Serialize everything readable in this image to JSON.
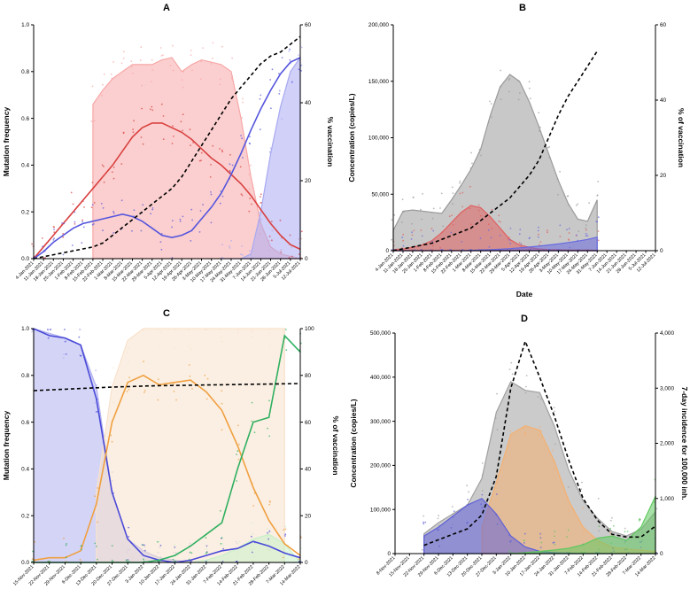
{
  "figure": {
    "panels": [
      "A",
      "B",
      "C",
      "D"
    ]
  },
  "chart_data": [
    {
      "panel": "A",
      "type": "line",
      "title": "A",
      "ylabel": "Mutation frequency",
      "y2label": "% vaccination",
      "ylim": [
        0,
        1.0
      ],
      "y2lim": [
        0,
        60
      ],
      "yticks": [
        "0.0",
        "0.2",
        "0.4",
        "0.6",
        "0.8",
        "1.0"
      ],
      "y2ticks": [
        "0",
        "20",
        "40",
        "60"
      ],
      "categories": [
        "4-Jan-2021",
        "11-Jan-2021",
        "18-Jan-2021",
        "25-Jan-2021",
        "1-Feb-2021",
        "8-Feb-2021",
        "15-Feb-2021",
        "22-Feb-2021",
        "1-Mar-2021",
        "8-Mar-2021",
        "15-Mar-2021",
        "22-Mar-2021",
        "29-Mar-2021",
        "5-Apr-2021",
        "12-Apr-2021",
        "19-Apr-2021",
        "26-Apr-2021",
        "3-May-2021",
        "10-May-2021",
        "17-May-2021",
        "24-May-2021",
        "31-May-2021",
        "7-Jun-2021",
        "14-Jun-2021",
        "21-Jun-2021",
        "28-Jun-2021",
        "5-Jul-2021",
        "12-Jul-2021"
      ],
      "series": [
        {
          "name": "Area red",
          "kind": "area",
          "axis": "y",
          "color": "#f7a7a7",
          "values": [
            null,
            null,
            null,
            null,
            null,
            null,
            0.66,
            0.72,
            0.77,
            0.8,
            0.83,
            0.83,
            0.83,
            0.85,
            0.86,
            0.8,
            0.83,
            0.85,
            0.84,
            0.83,
            0.8,
            0.6,
            0.35,
            0.15,
            0.05,
            0.02,
            0.01,
            0.0
          ]
        },
        {
          "name": "Area blue",
          "kind": "area",
          "axis": "y",
          "color": "#a9a9f2",
          "values": [
            null,
            null,
            null,
            null,
            null,
            null,
            null,
            null,
            null,
            null,
            null,
            null,
            null,
            null,
            null,
            null,
            null,
            null,
            null,
            0.0,
            0.0,
            0.0,
            0.02,
            0.2,
            0.45,
            0.65,
            0.8,
            0.86
          ]
        },
        {
          "name": "Red frequency",
          "kind": "line",
          "axis": "y",
          "color": "#d94040",
          "values": [
            0.0,
            0.05,
            0.1,
            0.15,
            0.2,
            0.25,
            0.3,
            0.35,
            0.4,
            0.46,
            0.52,
            0.56,
            0.58,
            0.58,
            0.56,
            0.54,
            0.51,
            0.47,
            0.43,
            0.4,
            0.36,
            0.32,
            0.27,
            0.21,
            0.15,
            0.1,
            0.06,
            0.04
          ]
        },
        {
          "name": "Blue frequency",
          "kind": "line",
          "axis": "y",
          "color": "#5555dd",
          "values": [
            0.0,
            0.03,
            0.07,
            0.1,
            0.13,
            0.15,
            0.16,
            0.17,
            0.18,
            0.19,
            0.18,
            0.16,
            0.13,
            0.1,
            0.09,
            0.1,
            0.12,
            0.17,
            0.22,
            0.28,
            0.36,
            0.45,
            0.55,
            0.64,
            0.72,
            0.79,
            0.84,
            0.86
          ]
        },
        {
          "name": "% vaccination",
          "kind": "dashed",
          "axis": "y2",
          "color": "#000000",
          "values": [
            0,
            0.5,
            1,
            1.5,
            2,
            2.5,
            3,
            4,
            6,
            8,
            10,
            12,
            14,
            16,
            18,
            21,
            25,
            29,
            33,
            37,
            41,
            44,
            47,
            50,
            52,
            53,
            55,
            57
          ]
        }
      ]
    },
    {
      "panel": "B",
      "type": "line",
      "title": "B",
      "xlabel": "Date",
      "ylabel": "Concentration (copies/L)",
      "y2label": "% of vaccination",
      "ylim": [
        0,
        200000
      ],
      "y2lim": [
        0,
        60
      ],
      "yticks": [
        "0",
        "50,000",
        "100,000",
        "150,000",
        "200,000"
      ],
      "y2ticks": [
        "0",
        "20",
        "40",
        "60"
      ],
      "categories": [
        "4-Jan-2021",
        "11-Jan-2021",
        "18-Jan-2021",
        "25-Jan-2021",
        "1-Feb-2021",
        "8-Feb-2021",
        "15-Feb-2021",
        "22-Feb-2021",
        "1-Mar-2021",
        "8-Mar-2021",
        "15-Mar-2021",
        "22-Mar-2021",
        "29-Mar-2021",
        "5-Apr-2021",
        "12-Apr-2021",
        "19-Apr-2021",
        "26-Apr-2021",
        "3-May-2021",
        "10-May-2021",
        "17-May-2021",
        "24-May-2021",
        "31-May-2021",
        "7-Jun-2021",
        "14-Jun-2021",
        "21-Jun-2021",
        "28-Jun-2021",
        "5-Jul-2021",
        "12-Jul-2021"
      ],
      "series": [
        {
          "name": "Total",
          "kind": "area",
          "axis": "y",
          "color": "#9a9a9a",
          "values": [
            18000,
            35000,
            36000,
            35000,
            34000,
            33000,
            45000,
            58000,
            72000,
            90000,
            120000,
            145000,
            156000,
            150000,
            132000,
            110000,
            86000,
            62000,
            42000,
            28000,
            26000,
            45000,
            null,
            null,
            null,
            null,
            null,
            null
          ]
        },
        {
          "name": "Variant red",
          "kind": "area",
          "axis": "y",
          "color": "#e06060",
          "values": [
            1000,
            1500,
            3000,
            5000,
            9000,
            16000,
            25000,
            34000,
            40000,
            38000,
            30000,
            20000,
            10000,
            5000,
            3000,
            1500,
            1000,
            800,
            600,
            500,
            400,
            300,
            null,
            null,
            null,
            null,
            null,
            null
          ]
        },
        {
          "name": "Variant blue",
          "kind": "area",
          "axis": "y",
          "color": "#6a6ae0",
          "values": [
            0,
            0,
            0,
            0,
            0,
            0,
            0,
            0,
            300,
            600,
            900,
            1300,
            1800,
            2500,
            3200,
            4000,
            5000,
            6000,
            7200,
            8500,
            10000,
            12000,
            null,
            null,
            null,
            null,
            null,
            null
          ]
        },
        {
          "name": "% vaccination",
          "kind": "dashed",
          "axis": "y2",
          "color": "#000000",
          "values": [
            0,
            0.5,
            1,
            1.5,
            2,
            3,
            4,
            5,
            6,
            8,
            10,
            12,
            14,
            17,
            20,
            24,
            30,
            36,
            41,
            45,
            49,
            53,
            null,
            null,
            null,
            null,
            null,
            null
          ]
        }
      ]
    },
    {
      "panel": "C",
      "type": "line",
      "title": "C",
      "ylabel": "Mutation frequency",
      "y2label": "% of vaccination",
      "ylim": [
        0,
        1.0
      ],
      "y2lim": [
        0,
        100
      ],
      "yticks": [
        "0.0",
        "0.2",
        "0.4",
        "0.6",
        "0.8",
        "1.0"
      ],
      "y2ticks": [
        "0",
        "20",
        "40",
        "60",
        "80",
        "100"
      ],
      "categories": [
        "15-Nov-2021",
        "22-Nov-2021",
        "29-Nov-2021",
        "6-Dec-2021",
        "13-Dec-2021",
        "20-Dec-2021",
        "27-Dec-2021",
        "3-Jan-2022",
        "10-Jan-2022",
        "17-Jan-2022",
        "24-Jan-2022",
        "31-Jan-2022",
        "7-Feb-2022",
        "14-Feb-2022",
        "21-Feb-2022",
        "28-Feb-2022",
        "7-Mar-2022",
        "14-Mar-2022"
      ],
      "series": [
        {
          "name": "Area blue",
          "kind": "area",
          "axis": "y",
          "color": "#b0b0f0",
          "values": [
            1.0,
            0.98,
            0.96,
            0.93,
            0.75,
            0.3,
            0.1,
            0.05,
            0.02,
            0.01,
            0.0,
            0.0,
            0.0,
            0.0,
            0.0,
            0.0,
            0.0,
            0.0
          ]
        },
        {
          "name": "Area orange",
          "kind": "area",
          "axis": "y",
          "color": "#f8e2cc",
          "values": [
            null,
            null,
            null,
            null,
            0.3,
            0.75,
            0.95,
            1.0,
            1.0,
            1.0,
            1.0,
            1.0,
            1.0,
            1.0,
            1.0,
            1.0,
            1.0,
            null
          ]
        },
        {
          "name": "Area green",
          "kind": "area",
          "axis": "y",
          "color": "#c9f0c9",
          "values": [
            null,
            null,
            null,
            null,
            null,
            null,
            0.0,
            0.0,
            0.0,
            0.0,
            0.0,
            0.01,
            0.03,
            0.06,
            0.1,
            0.12,
            0.08,
            0.0
          ]
        },
        {
          "name": "Blue frequency",
          "kind": "line",
          "axis": "y",
          "color": "#4a4ad8",
          "values": [
            1.0,
            0.97,
            0.96,
            0.93,
            0.7,
            0.3,
            0.1,
            0.03,
            0.01,
            0.0,
            0.01,
            0.03,
            0.05,
            0.06,
            0.09,
            0.07,
            0.04,
            0.02
          ]
        },
        {
          "name": "Orange frequency",
          "kind": "line",
          "axis": "y",
          "color": "#f0a040",
          "values": [
            0.01,
            0.02,
            0.02,
            0.05,
            0.25,
            0.6,
            0.77,
            0.8,
            0.76,
            0.77,
            0.78,
            0.73,
            0.65,
            0.5,
            0.32,
            0.18,
            0.08,
            0.03
          ]
        },
        {
          "name": "Green frequency",
          "kind": "line",
          "axis": "y",
          "color": "#30b060",
          "values": [
            0.0,
            0.0,
            0.0,
            0.0,
            0.0,
            0.0,
            0.0,
            0.0,
            0.01,
            0.03,
            0.07,
            0.12,
            0.17,
            0.4,
            0.6,
            0.62,
            0.97,
            0.9
          ]
        },
        {
          "name": "% vaccination",
          "kind": "dashed",
          "axis": "y2",
          "color": "#000000",
          "values": [
            73.5,
            73.8,
            74.1,
            74.4,
            74.7,
            75.0,
            75.2,
            75.4,
            75.6,
            75.7,
            75.8,
            75.9,
            76.0,
            76.1,
            76.2,
            76.3,
            76.4,
            76.5
          ]
        }
      ]
    },
    {
      "panel": "D",
      "type": "line",
      "title": "D",
      "ylabel": "Concentration (copies/L)",
      "y2label": "7-day incidence for 100,000 inh.",
      "ylim": [
        0,
        500000
      ],
      "y2lim": [
        0,
        4000
      ],
      "yticks": [
        "0",
        "100,000",
        "200,000",
        "300,000",
        "400,000",
        "500,000"
      ],
      "y2ticks": [
        "0",
        "1,000",
        "2,000",
        "3,000",
        "4,000"
      ],
      "categories": [
        "8-Nov-2021",
        "15-Nov-2021",
        "22-Nov-2021",
        "29-Nov-2021",
        "6-Dec-2021",
        "13-Dec-2021",
        "20-Dec-2021",
        "27-Dec-2021",
        "3-Jan-2022",
        "10-Jan-2022",
        "17-Jan-2022",
        "24-Jan-2022",
        "31-Jan-2022",
        "7-Feb-2022",
        "14-Feb-2022",
        "21-Feb-2022",
        "28-Feb-2022",
        "7-Mar-2022",
        "14-Mar-2022"
      ],
      "series": [
        {
          "name": "Total",
          "kind": "area",
          "axis": "y",
          "color": "#a0a0a0",
          "values": [
            null,
            null,
            45000,
            70000,
            90000,
            110000,
            170000,
            320000,
            390000,
            370000,
            365000,
            290000,
            190000,
            120000,
            80000,
            50000,
            40000,
            55000,
            95000
          ]
        },
        {
          "name": "Variant orange",
          "kind": "area",
          "axis": "y",
          "color": "#f5b070",
          "values": [
            null,
            null,
            null,
            null,
            null,
            null,
            60000,
            160000,
            270000,
            290000,
            280000,
            210000,
            120000,
            60000,
            30000,
            15000,
            10000,
            8000,
            5000
          ]
        },
        {
          "name": "Variant blue",
          "kind": "area",
          "axis": "y",
          "color": "#6060d8",
          "values": [
            null,
            null,
            40000,
            60000,
            85000,
            110000,
            125000,
            90000,
            40000,
            15000,
            5000,
            2000,
            1000,
            500,
            300,
            200,
            100,
            100,
            100
          ]
        },
        {
          "name": "Variant green",
          "kind": "area",
          "axis": "y",
          "color": "#60c860",
          "values": [
            null,
            null,
            null,
            null,
            null,
            null,
            null,
            null,
            0,
            2000,
            5000,
            8000,
            12000,
            20000,
            35000,
            40000,
            30000,
            60000,
            130000
          ]
        },
        {
          "name": "7-day incidence",
          "kind": "dashed",
          "axis": "y2",
          "color": "#000000",
          "values": [
            null,
            null,
            150,
            250,
            350,
            450,
            700,
            1400,
            3000,
            3850,
            3200,
            2500,
            1700,
            1000,
            600,
            350,
            300,
            300,
            500
          ]
        }
      ]
    }
  ]
}
